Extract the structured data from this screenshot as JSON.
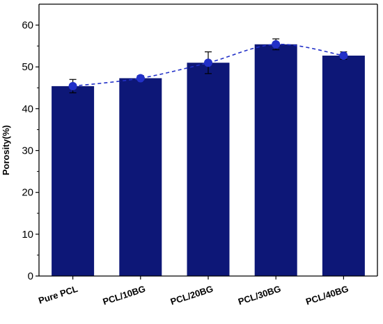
{
  "chart_data": {
    "type": "bar",
    "categories": [
      "Pure PCL",
      "PCL/10BG",
      "PCL/20BG",
      "PCL/30BG",
      "PCL/40BG"
    ],
    "values": [
      45.4,
      47.3,
      51.0,
      55.4,
      52.7
    ],
    "errors": [
      1.6,
      0.6,
      2.6,
      1.3,
      0.9
    ],
    "overlay": {
      "style": "dashed line with circle markers",
      "values": [
        45.4,
        47.3,
        51.0,
        55.4,
        52.7
      ]
    },
    "xlabel": "",
    "ylabel": "Porosity(%)",
    "ylim": [
      0,
      65
    ],
    "yticks": [
      0,
      10,
      20,
      30,
      40,
      50,
      60
    ],
    "grid": false,
    "colors": {
      "bar": "#0d1777",
      "marker": "#2230c8",
      "line": "#2230c8",
      "error": "#000000",
      "axis": "#000000"
    }
  }
}
